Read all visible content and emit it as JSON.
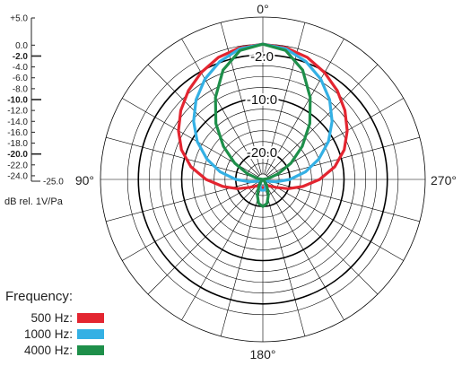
{
  "chart_data": {
    "type": "polar",
    "title": "",
    "angle_labels": [
      "0°",
      "90°",
      "180°",
      "270°"
    ],
    "radial_range_db": [
      -25.0,
      5.0
    ],
    "ring_labels": [
      "-2.0",
      "-10.0",
      "-20.0"
    ],
    "scale_labels": [
      "+5.0",
      "0.0",
      "-2.0",
      "-4.0",
      "-6.0",
      "-8.0",
      "-10.0",
      "-12.0",
      "-14.0",
      "-16.0",
      "-18.0",
      "-20.0",
      "-22.0",
      "-24.0",
      "-25.0"
    ],
    "unit_label": "dB rel. 1V/Pa",
    "legend_title": "Frequency:",
    "series": [
      {
        "name": "500 Hz:",
        "color": "#e32530",
        "angles_deg": [
          0,
          10,
          20,
          30,
          40,
          50,
          60,
          70,
          80,
          90,
          100,
          110,
          120,
          130,
          140,
          150,
          160,
          170,
          180
        ],
        "db": [
          0.0,
          -0.3,
          -1.0,
          -2.2,
          -3.6,
          -5.2,
          -7.0,
          -9.0,
          -11.5,
          -14.5,
          -17.5,
          -20.0,
          -22.0,
          -23.0,
          -23.5,
          -23.5,
          -23.5,
          -23.5,
          -23.5
        ]
      },
      {
        "name": "1000 Hz:",
        "color": "#34b0e4",
        "angles_deg": [
          0,
          10,
          20,
          30,
          40,
          50,
          60,
          70,
          80,
          90,
          100,
          110,
          120,
          130,
          140,
          150,
          160,
          170,
          180
        ],
        "db": [
          0.0,
          -0.5,
          -1.8,
          -3.6,
          -5.8,
          -8.3,
          -11.0,
          -14.0,
          -17.0,
          -20.0,
          -22.5,
          -24.0,
          -24.5,
          -24.5,
          -24.5,
          -24.0,
          -23.5,
          -23.0,
          -23.0
        ]
      },
      {
        "name": "4000 Hz:",
        "color": "#1e8f4a",
        "angles_deg": [
          0,
          10,
          20,
          30,
          40,
          50,
          60,
          70,
          80,
          90,
          100,
          110,
          120,
          130,
          140,
          150,
          160,
          170,
          180
        ],
        "db": [
          0.0,
          -0.8,
          -3.5,
          -7.5,
          -11.5,
          -15.5,
          -19.0,
          -22.0,
          -24.0,
          -25.0,
          -25.0,
          -25.0,
          -25.0,
          -25.0,
          -24.5,
          -23.5,
          -22.0,
          -20.5,
          -20.0
        ]
      }
    ]
  }
}
